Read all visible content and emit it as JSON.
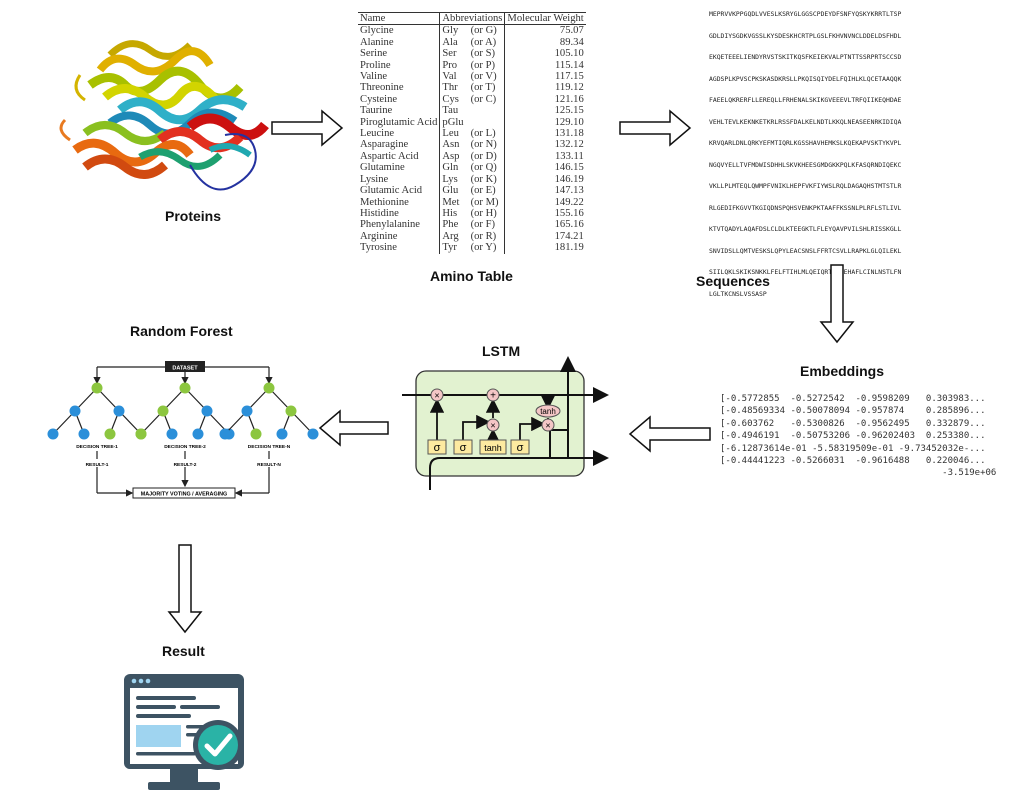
{
  "labels": {
    "proteins": "Proteins",
    "amino_table": "Amino Table",
    "sequences": "Sequences",
    "embeddings": "Embeddings",
    "lstm": "LSTM",
    "random_forest": "Random Forest",
    "result": "Result"
  },
  "amino_table": {
    "headers": [
      "Name",
      "Abbreviations",
      "Molecular Weight"
    ],
    "rows": [
      [
        "Glycine",
        "Gly",
        "(or G)",
        "75.07"
      ],
      [
        "Alanine",
        "Ala",
        "(or A)",
        "89.34"
      ],
      [
        "Serine",
        "Ser",
        "(or S)",
        "105.10"
      ],
      [
        "Proline",
        "Pro",
        "(or P)",
        "115.14"
      ],
      [
        "Valine",
        "Val",
        "(or V)",
        "117.15"
      ],
      [
        "Threonine",
        "Thr",
        "(or T)",
        "119.12"
      ],
      [
        "Cysteine",
        "Cys",
        "(or C)",
        "121.16"
      ],
      [
        "Taurine",
        "Tau",
        "",
        "125.15"
      ],
      [
        "Piroglutamic Acid",
        "pGlu",
        "",
        "129.10"
      ],
      [
        "Leucine",
        "Leu",
        "(or L)",
        "131.18"
      ],
      [
        "Asparagine",
        "Asn",
        "(or N)",
        "132.12"
      ],
      [
        "Aspartic Acid",
        "Asp",
        "(or D)",
        "133.11"
      ],
      [
        "Glutamine",
        "Gln",
        "(or Q)",
        "146.15"
      ],
      [
        "Lysine",
        "Lys",
        "(or K)",
        "146.19"
      ],
      [
        "Glutamic Acid",
        "Glu",
        "(or E)",
        "147.13"
      ],
      [
        "Methionine",
        "Met",
        "(or M)",
        "149.22"
      ],
      [
        "Histidine",
        "His",
        "(or H)",
        "155.16"
      ],
      [
        "Phenylalanine",
        "Phe",
        "(or F)",
        "165.16"
      ],
      [
        "Arginine",
        "Arg",
        "(or R)",
        "174.21"
      ],
      [
        "Tyrosine",
        "Tyr",
        "(or Y)",
        "181.19"
      ]
    ]
  },
  "sequences": [
    "MEPRVVKPPGQDLVVESLKSRYGLGGSCPDEYDFSNFYQSKYKRRTLTSP",
    "GDLDIYSGDKVGSSLKYSDESKHCRTPLGSLFKHVNVNCLDDELDSFHDL",
    "EKQETEEELIENDYRVSTSKITKQSFKEIEKVALPTNTTSSRPRTSCCSD",
    "AGDSPLKPVSCPKSKASDKRSLLPKQISQIYDELFQIHLKLQCETAAQQK",
    "FAEELQKRERFLLEREQLLFRHENALSKIKGVEEEVLTRFQIIKEQHDAE",
    "VEHLTEVLKEKNKETKRLRSSFDALKELNDTLKKQLNEASEENRKIDIQA",
    "KRVQARLDNLQRKYEFMTIQRLKGSSHAVHEMKSLKQEKAPVSKTYKVPL",
    "NGQVYELLTVFMDWISDHHLSKVKHEESGMDGKKPQLKFASQRNDIQEKC",
    "VKLLPLMTEQLQWMPFVNIKLHEPFVKFIYWSLRQLDAGAQHSTMTSTLR",
    "RLGEDIFKGVVTKGIQDNSPQHSVENKPKTAAFFKSSNLPLRFLSTLIVL",
    "KTVTQADYLAQAFDSLCLDLKTEEGKTLFLEYQAVPVILSHLRISSKGLL",
    "SNVIDSLLQMTVESKSLQPYLEACSNSLFFRTCSVLLRAPKLGLQILEKL",
    "SIILQKLSKIKSNKKLFELFTIHLMLQEIQRTTNPEHAFLCINLNSTLFN",
    "LGLTKCNSLVSSASP"
  ],
  "embeddings": [
    "[-0.5772855  -0.5272542  -0.9598209   0.303983...",
    "[-0.48569334 -0.50078094 -0.957874    0.285896...",
    "[-0.603762   -0.5300826  -0.9562495   0.332879...",
    "[-0.4946191  -0.50753206 -0.96202403  0.253380...",
    "[-6.12873614e-01 -5.58319509e-01 -9.73452032e-...",
    "[-0.44441223 -0.5266031  -0.9616488   0.220046...",
    "                                         -3.519e+06"
  ],
  "lstm_cell": {
    "gates": [
      "σ",
      "σ",
      "tanh",
      "σ"
    ],
    "ops": [
      "×",
      "+",
      "×",
      "×"
    ],
    "tanh_op": "tanh"
  },
  "random_forest": {
    "dataset": "DATASET",
    "trees": [
      "DECISION TREE-1",
      "DECISION TREE-2",
      "DECISION TREE-N"
    ],
    "results": [
      "RESULT-1",
      "RESULT-2",
      "RESULT-N"
    ],
    "aggregate": "MAJORITY VOTING / AVERAGING"
  },
  "colors": {
    "lstm_fill": "#e2f2d0",
    "gate_fill": "#fdeaa0",
    "op_fill": "#f4c6c6",
    "tree_green": "#8cc63f",
    "tree_blue": "#2b8fd9",
    "monitor_dark": "#3d5363",
    "check_teal": "#2ab3a6"
  }
}
